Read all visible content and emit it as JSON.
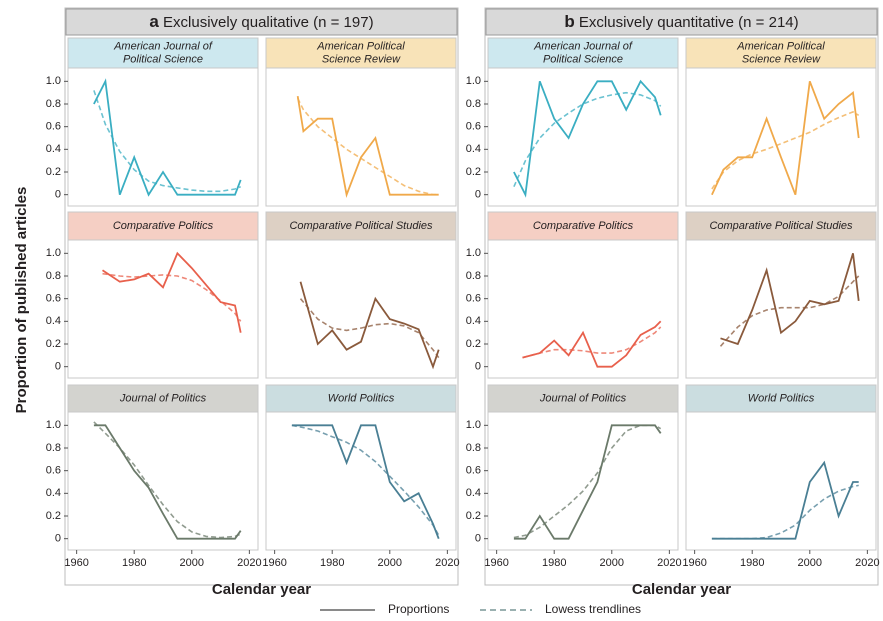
{
  "figure": {
    "ylabel": "Proportion of published articles",
    "legend": {
      "solid": "Proportions",
      "dashed": "Lowess trendlines"
    },
    "groups": [
      {
        "letter": "a",
        "title": "Exclusively qualitative",
        "n": "(n = 197)",
        "xlabel": "Calendar year"
      },
      {
        "letter": "b",
        "title": "Exclusively quantitative",
        "n": "(n = 214)",
        "xlabel": "Calendar year"
      }
    ]
  },
  "chart_data": [
    {
      "type": "line",
      "title": "American Journal of Political Science",
      "title_background": "#cde8ef",
      "x": [
        1966,
        1970,
        1975,
        1980,
        1985,
        1990,
        1995,
        2000,
        2005,
        2010,
        2015,
        2017
      ],
      "series": [
        {
          "color": "#3aaec2",
          "line_style": "solid",
          "values": [
            0.8,
            1.0,
            0,
            0.33,
            0,
            0.2,
            0,
            0,
            0,
            0,
            0,
            0.13
          ]
        },
        {
          "color": "#3aaec2",
          "line_style": "dashed",
          "values": [
            0.92,
            0.62,
            0.38,
            0.22,
            0.12,
            0.08,
            0.06,
            0.04,
            0.03,
            0.03,
            0.05,
            0.07
          ]
        }
      ],
      "xlim": [
        1957,
        2023
      ],
      "ylim": [
        -0.1,
        1.1
      ],
      "yticks": [
        0,
        0.2,
        0.4,
        0.6,
        0.8,
        {
          "value": 1,
          "label": "1.0"
        }
      ]
    },
    {
      "type": "line",
      "title": "American Political Science Review",
      "title_background": "#f8e3b8",
      "x": [
        1968,
        1970,
        1975,
        1980,
        1985,
        1990,
        1995,
        2000,
        2005,
        2010,
        2015,
        2017
      ],
      "series": [
        {
          "color": "#f0a94a",
          "line_style": "solid",
          "values": [
            0.87,
            0.56,
            0.67,
            0.67,
            0,
            0.33,
            0.5,
            0,
            0,
            0,
            0,
            0
          ]
        },
        {
          "color": "#f0a94a",
          "line_style": "dashed",
          "values": [
            0.85,
            0.75,
            0.6,
            0.5,
            0.4,
            0.32,
            0.24,
            0.16,
            0.08,
            0.03,
            0,
            0
          ]
        }
      ],
      "xlim": [
        1957,
        2023
      ],
      "ylim": [
        -0.1,
        1.1
      ]
    },
    {
      "type": "line",
      "title": "Comparative Politics",
      "title_background": "#f5cfc4",
      "x": [
        1969,
        1975,
        1980,
        1985,
        1990,
        1995,
        2000,
        2005,
        2010,
        2015,
        2017
      ],
      "series": [
        {
          "color": "#e8604c",
          "line_style": "solid",
          "values": [
            0.85,
            0.75,
            0.77,
            0.82,
            0.7,
            1.0,
            0.87,
            0.72,
            0.57,
            0.54,
            0.3
          ]
        },
        {
          "color": "#e8604c",
          "line_style": "dashed",
          "values": [
            0.82,
            0.8,
            0.79,
            0.8,
            0.81,
            0.8,
            0.76,
            0.68,
            0.58,
            0.47,
            0.4
          ]
        }
      ],
      "xlim": [
        1957,
        2023
      ],
      "ylim": [
        -0.1,
        1.1
      ],
      "yticks": [
        0,
        0.2,
        0.4,
        0.6,
        0.8,
        {
          "value": 1,
          "label": "1.0"
        }
      ]
    },
    {
      "type": "line",
      "title": "Comparative Political Studies",
      "title_background": "#ddd0c4",
      "x": [
        1969,
        1975,
        1980,
        1985,
        1990,
        1995,
        2000,
        2005,
        2010,
        2015,
        2017
      ],
      "series": [
        {
          "color": "#8a5a3c",
          "line_style": "solid",
          "values": [
            0.75,
            0.2,
            0.32,
            0.15,
            0.22,
            0.6,
            0.42,
            0.38,
            0.33,
            0,
            0.15
          ]
        },
        {
          "color": "#8a5a3c",
          "line_style": "dashed",
          "values": [
            0.6,
            0.42,
            0.34,
            0.32,
            0.34,
            0.37,
            0.38,
            0.36,
            0.3,
            0.15,
            0.08
          ]
        }
      ],
      "xlim": [
        1957,
        2023
      ],
      "ylim": [
        -0.1,
        1.1
      ]
    },
    {
      "type": "line",
      "title": "Journal of Politics",
      "title_background": "#d3d3cf",
      "x": [
        1966,
        1970,
        1975,
        1980,
        1985,
        1990,
        1995,
        2000,
        2005,
        2010,
        2015,
        2017
      ],
      "series": [
        {
          "color": "#6b7a6a",
          "line_style": "solid",
          "values": [
            1.0,
            1.0,
            0.8,
            0.6,
            0.45,
            0.22,
            0,
            0,
            0,
            0,
            0,
            0.07
          ]
        },
        {
          "color": "#6b7a6a",
          "line_style": "dashed",
          "values": [
            1.03,
            0.93,
            0.8,
            0.65,
            0.47,
            0.3,
            0.15,
            0.06,
            0.02,
            0.01,
            0.02,
            0.04
          ]
        }
      ],
      "xlim": [
        1957,
        2023
      ],
      "ylim": [
        -0.1,
        1.1
      ],
      "yticks": [
        0,
        0.2,
        0.4,
        0.6,
        0.8,
        {
          "value": 1,
          "label": "1.0"
        }
      ],
      "xticks": [
        1960,
        1980,
        2000,
        2020
      ]
    },
    {
      "type": "line",
      "title": "World Politics",
      "title_background": "#cbdde0",
      "x": [
        1966,
        1970,
        1975,
        1980,
        1985,
        1990,
        1995,
        2000,
        2005,
        2010,
        2015,
        2017
      ],
      "series": [
        {
          "color": "#4a7f94",
          "line_style": "solid",
          "values": [
            1,
            1,
            1,
            1,
            0.67,
            1,
            1,
            0.5,
            0.33,
            0.4,
            0.13,
            0
          ]
        },
        {
          "color": "#4a7f94",
          "line_style": "dashed",
          "values": [
            1,
            0.98,
            0.95,
            0.9,
            0.85,
            0.78,
            0.68,
            0.55,
            0.42,
            0.28,
            0.12,
            0.03
          ]
        }
      ],
      "xlim": [
        1957,
        2023
      ],
      "ylim": [
        -0.1,
        1.1
      ],
      "xticks": [
        1960,
        1980,
        2000,
        2020
      ]
    },
    {
      "type": "line",
      "title": "American Journal of Political Science",
      "title_background": "#cde8ef",
      "x": [
        1966,
        1970,
        1975,
        1980,
        1985,
        1990,
        1995,
        2000,
        2005,
        2010,
        2015,
        2017
      ],
      "series": [
        {
          "color": "#3aaec2",
          "line_style": "solid",
          "values": [
            0.2,
            0,
            1.0,
            0.67,
            0.5,
            0.8,
            1,
            1,
            0.75,
            1,
            0.86,
            0.7
          ]
        },
        {
          "color": "#3aaec2",
          "line_style": "dashed",
          "values": [
            0.07,
            0.3,
            0.5,
            0.63,
            0.72,
            0.8,
            0.85,
            0.88,
            0.9,
            0.88,
            0.83,
            0.78
          ]
        }
      ],
      "xlim": [
        1957,
        2023
      ],
      "ylim": [
        -0.1,
        1.1
      ],
      "yticks": [
        0,
        0.2,
        0.4,
        0.6,
        0.8,
        {
          "value": 1,
          "label": "1.0"
        }
      ]
    },
    {
      "type": "line",
      "title": "American Political Science Review",
      "title_background": "#f8e3b8",
      "x": [
        1966,
        1970,
        1975,
        1980,
        1985,
        1990,
        1995,
        2000,
        2005,
        2010,
        2015,
        2017
      ],
      "series": [
        {
          "color": "#f0a94a",
          "line_style": "solid",
          "values": [
            0,
            0.22,
            0.33,
            0.33,
            0.67,
            0.33,
            0,
            1.0,
            0.67,
            0.8,
            0.9,
            0.5
          ]
        },
        {
          "color": "#f0a94a",
          "line_style": "dashed",
          "values": [
            0.05,
            0.2,
            0.3,
            0.36,
            0.4,
            0.45,
            0.5,
            0.55,
            0.62,
            0.68,
            0.73,
            0.7
          ]
        }
      ],
      "xlim": [
        1957,
        2023
      ],
      "ylim": [
        -0.1,
        1.1
      ]
    },
    {
      "type": "line",
      "title": "Comparative Politics",
      "title_background": "#f5cfc4",
      "x": [
        1969,
        1975,
        1980,
        1985,
        1990,
        1995,
        2000,
        2005,
        2010,
        2015,
        2017
      ],
      "series": [
        {
          "color": "#e8604c",
          "line_style": "solid",
          "values": [
            0.08,
            0.12,
            0.23,
            0.1,
            0.3,
            0,
            0,
            0.1,
            0.28,
            0.35,
            0.4
          ]
        },
        {
          "color": "#e8604c",
          "line_style": "dashed",
          "values": [
            0.08,
            0.12,
            0.15,
            0.15,
            0.14,
            0.12,
            0.12,
            0.15,
            0.22,
            0.3,
            0.35
          ]
        }
      ],
      "xlim": [
        1957,
        2023
      ],
      "ylim": [
        -0.1,
        1.1
      ],
      "yticks": [
        0,
        0.2,
        0.4,
        0.6,
        0.8,
        {
          "value": 1,
          "label": "1.0"
        }
      ]
    },
    {
      "type": "line",
      "title": "Comparative Political Studies",
      "title_background": "#ddd0c4",
      "x": [
        1969,
        1975,
        1980,
        1985,
        1990,
        1995,
        2000,
        2005,
        2010,
        2015,
        2017
      ],
      "series": [
        {
          "color": "#8a5a3c",
          "line_style": "solid",
          "values": [
            0.25,
            0.2,
            0.5,
            0.85,
            0.3,
            0.4,
            0.58,
            0.55,
            0.58,
            1.0,
            0.58
          ]
        },
        {
          "color": "#8a5a3c",
          "line_style": "dashed",
          "values": [
            0.18,
            0.35,
            0.45,
            0.5,
            0.52,
            0.52,
            0.52,
            0.55,
            0.62,
            0.75,
            0.8
          ]
        }
      ],
      "xlim": [
        1957,
        2023
      ],
      "ylim": [
        -0.1,
        1.1
      ]
    },
    {
      "type": "line",
      "title": "Journal of Politics",
      "title_background": "#d3d3cf",
      "x": [
        1966,
        1970,
        1975,
        1980,
        1985,
        1990,
        1995,
        2000,
        2005,
        2010,
        2015,
        2017
      ],
      "series": [
        {
          "color": "#6b7a6a",
          "line_style": "solid",
          "values": [
            0,
            0,
            0.2,
            0,
            0,
            0.25,
            0.5,
            1.0,
            1.0,
            1.0,
            1.0,
            0.93
          ]
        },
        {
          "color": "#6b7a6a",
          "line_style": "dashed",
          "values": [
            0.01,
            0.03,
            0.1,
            0.2,
            0.3,
            0.42,
            0.58,
            0.8,
            0.95,
            1.0,
            1.0,
            0.97
          ]
        }
      ],
      "xlim": [
        1957,
        2023
      ],
      "ylim": [
        -0.1,
        1.1
      ],
      "yticks": [
        0,
        0.2,
        0.4,
        0.6,
        0.8,
        {
          "value": 1,
          "label": "1.0"
        }
      ],
      "xticks": [
        1960,
        1980,
        2000,
        2020
      ]
    },
    {
      "type": "line",
      "title": "World Politics",
      "title_background": "#cbdde0",
      "x": [
        1966,
        1970,
        1975,
        1980,
        1985,
        1990,
        1995,
        2000,
        2005,
        2010,
        2015,
        2017
      ],
      "series": [
        {
          "color": "#4a7f94",
          "line_style": "solid",
          "values": [
            0,
            0,
            0,
            0,
            0,
            0,
            0,
            0.5,
            0.67,
            0.2,
            0.5,
            0.5
          ]
        },
        {
          "color": "#4a7f94",
          "line_style": "dashed",
          "values": [
            0,
            0,
            0,
            0,
            0.01,
            0.05,
            0.12,
            0.25,
            0.35,
            0.42,
            0.46,
            0.47
          ]
        }
      ],
      "xlim": [
        1957,
        2023
      ],
      "ylim": [
        -0.1,
        1.1
      ],
      "xticks": [
        1960,
        1980,
        2000,
        2020
      ]
    }
  ]
}
